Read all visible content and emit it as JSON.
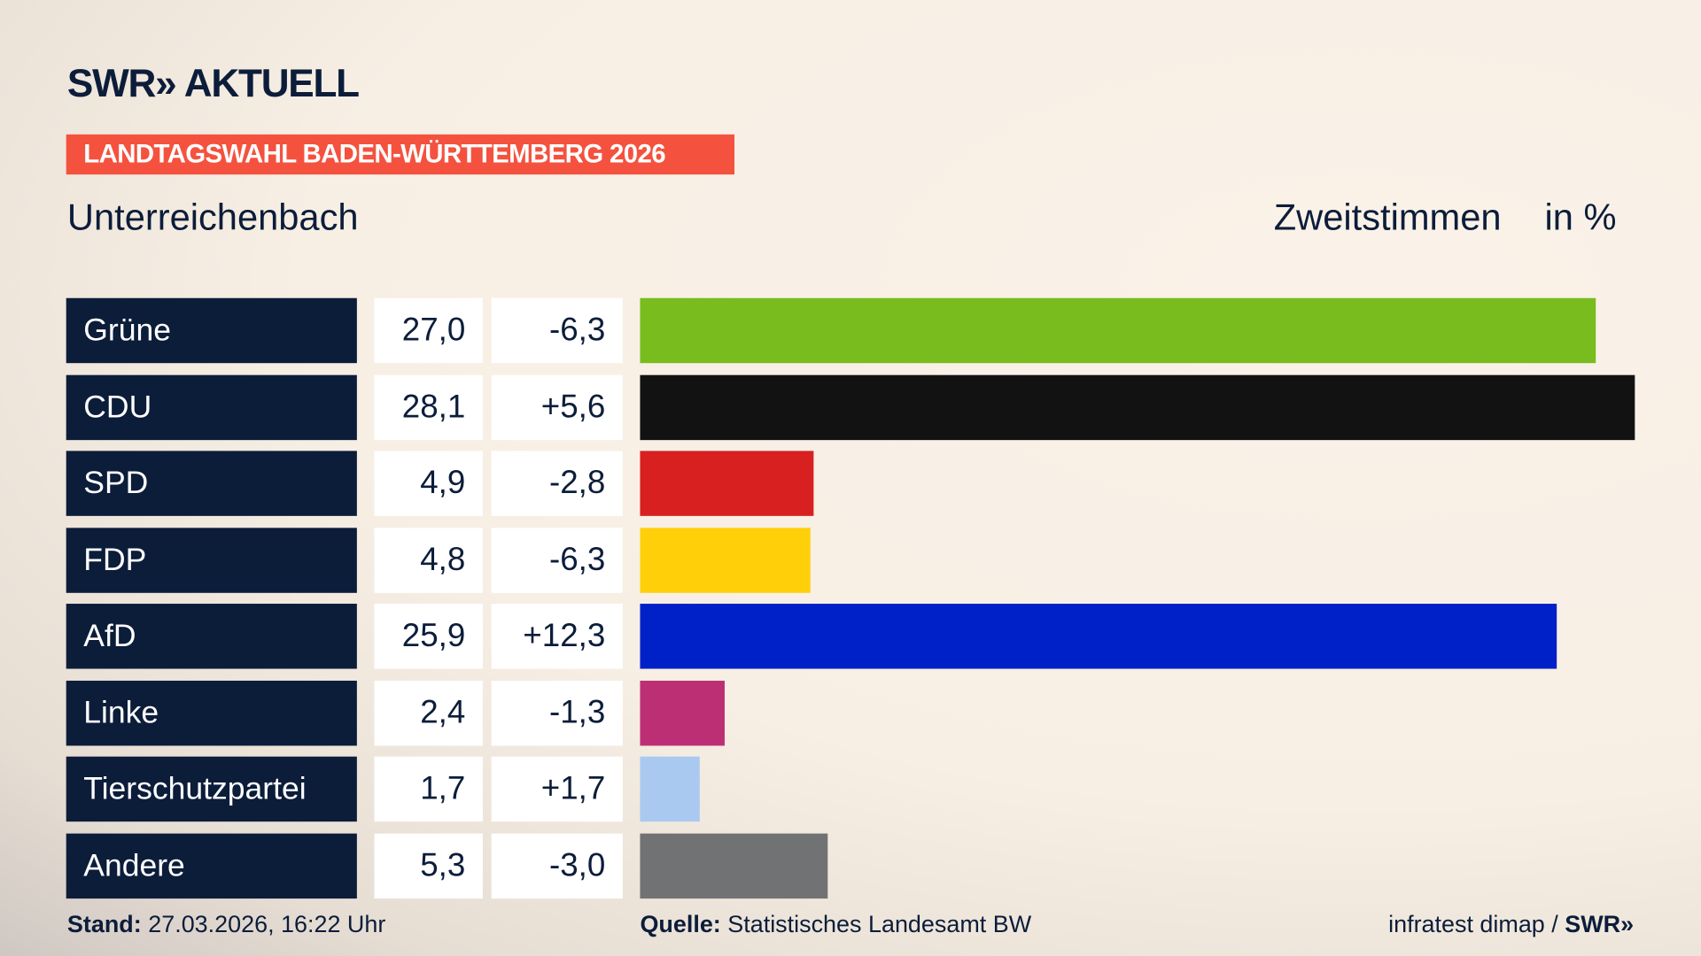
{
  "header": {
    "logo": "SWR» AKTUELL",
    "banner": "LANDTAGSWAHL BADEN-WÜRTTEMBERG 2026",
    "region": "Unterreichenbach",
    "vote_type": "Zweitstimmen",
    "unit": "in %"
  },
  "chart_data": {
    "type": "bar",
    "orientation": "horizontal",
    "xlim": [
      0,
      28.1
    ],
    "grid": false,
    "categories": [
      "Grüne",
      "CDU",
      "SPD",
      "FDP",
      "AfD",
      "Linke",
      "Tierschutzpartei",
      "Andere"
    ],
    "values": [
      27.0,
      28.1,
      4.9,
      4.8,
      25.9,
      2.4,
      1.7,
      5.3
    ],
    "value_labels": [
      "27,0",
      "28,1",
      "4,9",
      "4,8",
      "25,9",
      "2,4",
      "1,7",
      "5,3"
    ],
    "diff_labels": [
      "-6,3",
      "+5,6",
      "-2,8",
      "-6,3",
      "+12,3",
      "-1,3",
      "+1,7",
      "-3,0"
    ],
    "colors": [
      "#78bc1e",
      "#121212",
      "#d7201f",
      "#ffcf0a",
      "#0021c8",
      "#bd2f74",
      "#a9c9f0",
      "#717274"
    ]
  },
  "footer": {
    "stand_label": "Stand:",
    "stand_value": "27.03.2026, 16:22 Uhr",
    "source_label": "Quelle:",
    "source_value": "Statistisches Landesamt BW",
    "credit": "infratest dimap / ",
    "credit_logo": "SWR»"
  }
}
